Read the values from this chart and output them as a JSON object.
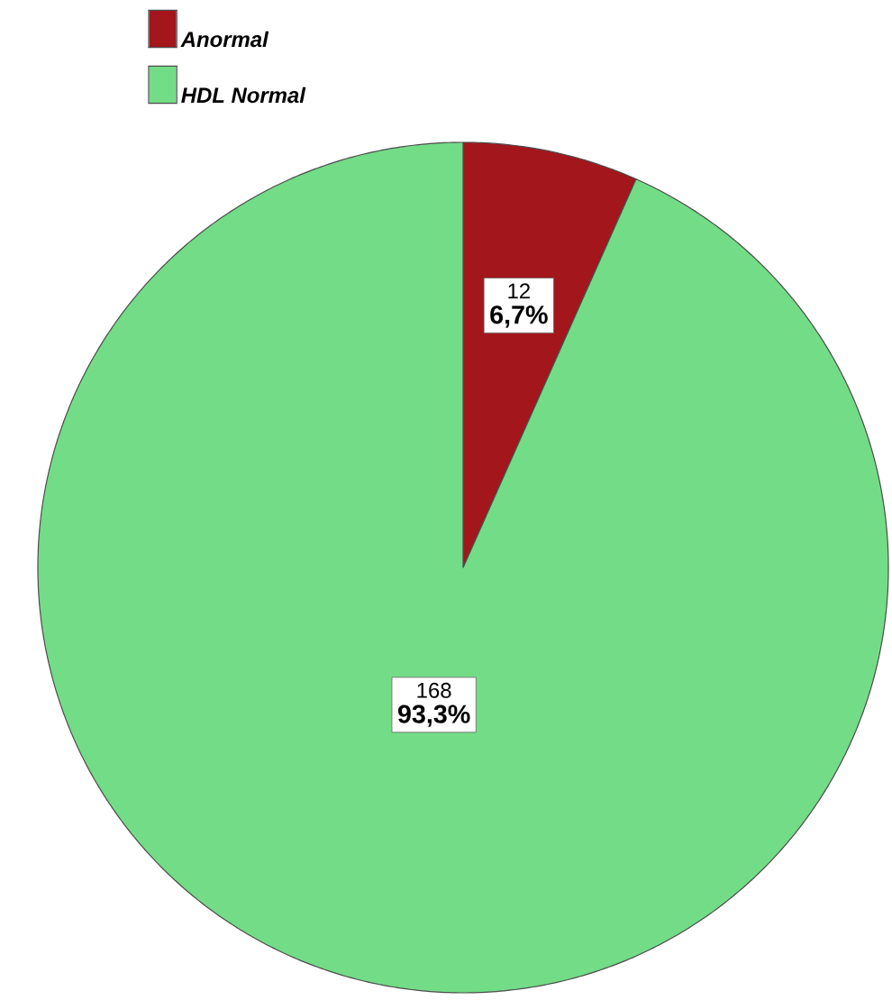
{
  "chart_data": {
    "type": "pie",
    "categories": [
      "Anormal",
      "HDL Normal"
    ],
    "values": [
      12,
      168
    ],
    "colors": [
      "#a3161b",
      "#73dc87"
    ],
    "value_labels": [
      "12",
      "168"
    ],
    "annotations": [
      "6,7%",
      "93,3%"
    ],
    "legend": "top left"
  }
}
